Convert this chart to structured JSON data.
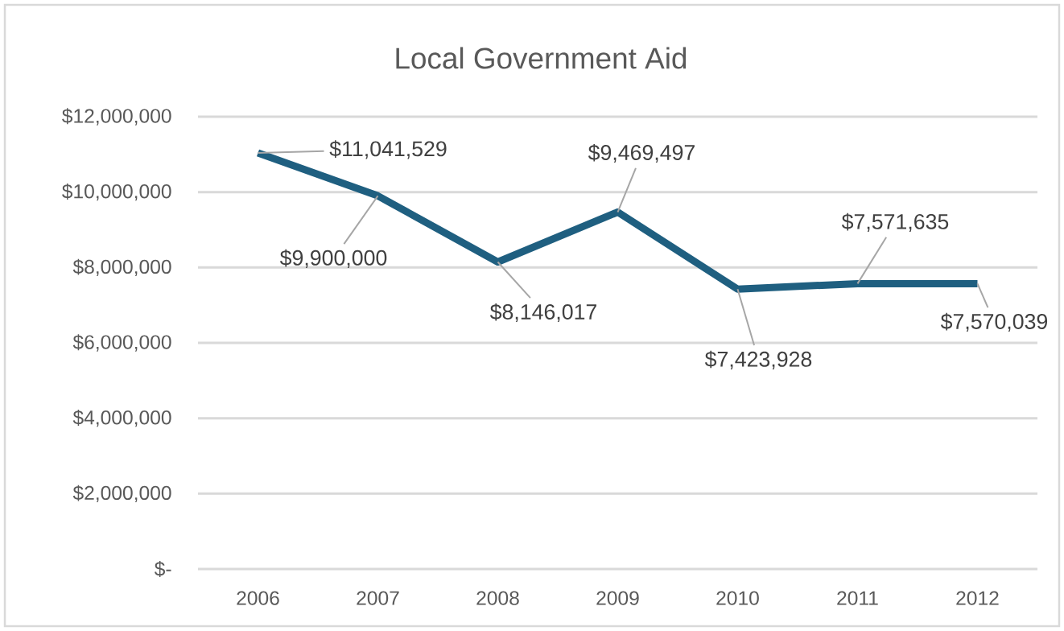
{
  "chart_data": {
    "type": "line",
    "title": "Local Government Aid",
    "categories": [
      "2006",
      "2007",
      "2008",
      "2009",
      "2010",
      "2011",
      "2012"
    ],
    "series": [
      {
        "color": "#1f5f80",
        "values": [
          11041529,
          9900000,
          8146017,
          9469497,
          7423928,
          7571635,
          7570039
        ],
        "value_labels": [
          "$11,041,529",
          "$9,900,000",
          "$8,146,017",
          "$9,469,497",
          "$7,423,928",
          "$7,571,635",
          "$7,570,039"
        ]
      }
    ],
    "ylim": [
      0,
      12000000
    ],
    "yticks": [
      {
        "value": 0,
        "label": "$-"
      },
      {
        "value": 2000000,
        "label": "$2,000,000"
      },
      {
        "value": 4000000,
        "label": "$4,000,000"
      },
      {
        "value": 6000000,
        "label": "$6,000,000"
      },
      {
        "value": 8000000,
        "label": "$8,000,000"
      },
      {
        "value": 10000000,
        "label": "$10,000,000"
      },
      {
        "value": 12000000,
        "label": "$12,000,000"
      }
    ],
    "grid": "y",
    "legend": false,
    "marker": "none",
    "line_style": "solid"
  }
}
